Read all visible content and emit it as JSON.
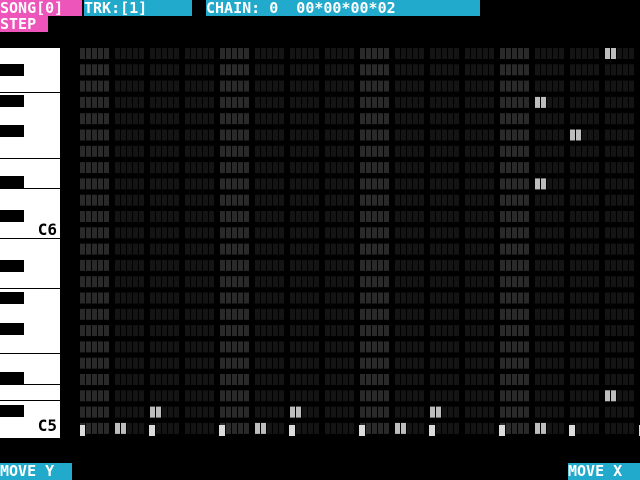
{
  "header": {
    "song_label": "SONG[0]",
    "trk_label": "TRK:[1]",
    "chain_label": "CHAIN: 0  00*00*00*02",
    "mode_label": "STEP"
  },
  "piano": {
    "labels": [
      "C6",
      "C5"
    ]
  },
  "grid": {
    "steps": 16,
    "rows": 24,
    "colors": {
      "off": "#141414",
      "on": "#bdbdbd",
      "beat": "#2a2a2a"
    },
    "notes": [
      {
        "step": 15,
        "row": 0
      },
      {
        "step": 13,
        "row": 3
      },
      {
        "step": 14,
        "row": 5
      },
      {
        "step": 13,
        "row": 8
      },
      {
        "step": 15,
        "row": 21
      },
      {
        "step": 2,
        "row": 22
      },
      {
        "step": 6,
        "row": 22
      },
      {
        "step": 10,
        "row": 22
      },
      {
        "step": 1,
        "row": 23
      },
      {
        "step": 5,
        "row": 23
      },
      {
        "step": 9,
        "row": 23
      },
      {
        "step": 13,
        "row": 23
      }
    ],
    "markers": [
      0,
      1,
      2,
      3,
      4,
      5,
      6,
      7,
      8,
      9,
      10,
      11,
      12,
      13,
      14,
      15
    ]
  },
  "footer": {
    "move_y": "MOVE Y",
    "move_x": "MOVE X"
  }
}
